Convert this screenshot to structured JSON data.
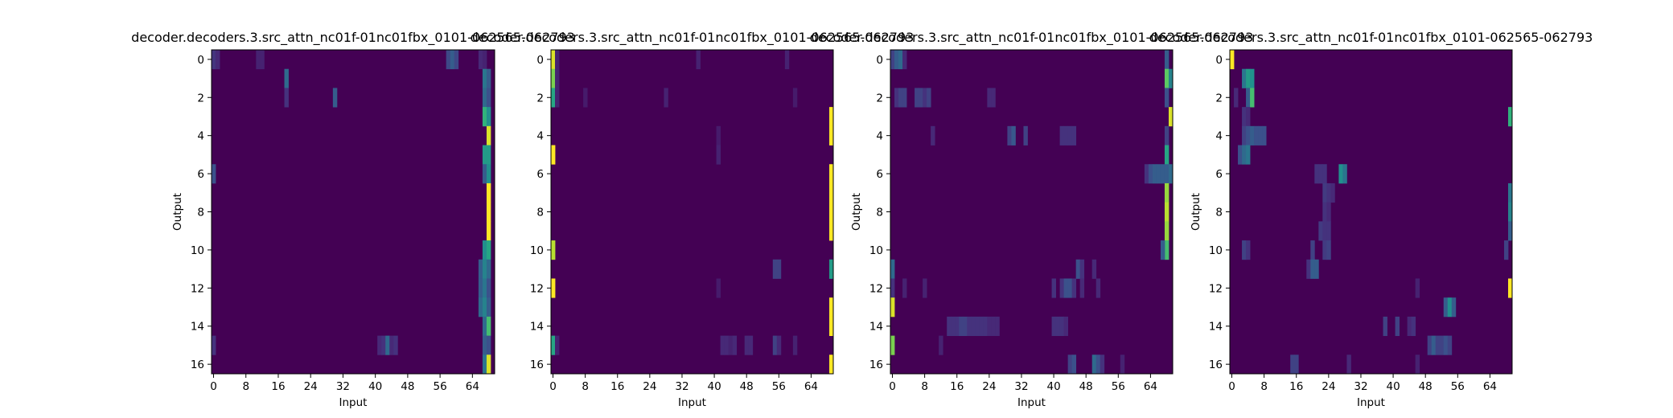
{
  "chart_data": {
    "type": "heatmap",
    "colormap": "viridis",
    "panels": [
      {
        "title": "decoder.decoders.3.src_attn_nc01f-01nc01fbx_0101-062565-062793",
        "xlabel": "Input",
        "ylabel": "Output",
        "n_rows": 17,
        "n_cols": 70,
        "xticks": [
          0,
          8,
          16,
          24,
          32,
          40,
          48,
          56,
          64
        ],
        "yticks": [
          0,
          2,
          4,
          6,
          8,
          10,
          12,
          14,
          16
        ],
        "background_value": 0.0,
        "cells": [
          [
            0,
            0,
            0.16
          ],
          [
            0,
            1,
            0.12
          ],
          [
            0,
            11,
            0.1
          ],
          [
            0,
            12,
            0.1
          ],
          [
            0,
            58,
            0.22
          ],
          [
            0,
            59,
            0.3
          ],
          [
            0,
            60,
            0.22
          ],
          [
            0,
            66,
            0.12
          ],
          [
            0,
            67,
            0.1
          ],
          [
            1,
            18,
            0.35
          ],
          [
            1,
            67,
            0.4
          ],
          [
            1,
            68,
            0.3
          ],
          [
            2,
            18,
            0.15
          ],
          [
            2,
            30,
            0.3
          ],
          [
            2,
            67,
            0.35
          ],
          [
            2,
            68,
            0.25
          ],
          [
            3,
            67,
            0.65
          ],
          [
            3,
            68,
            0.5
          ],
          [
            4,
            68,
            0.95
          ],
          [
            5,
            67,
            0.55
          ],
          [
            5,
            68,
            0.55
          ],
          [
            6,
            0,
            0.25
          ],
          [
            6,
            67,
            0.3
          ],
          [
            6,
            68,
            0.5
          ],
          [
            7,
            68,
            1.0
          ],
          [
            8,
            68,
            1.0
          ],
          [
            9,
            68,
            1.0
          ],
          [
            10,
            67,
            0.5
          ],
          [
            10,
            68,
            0.6
          ],
          [
            11,
            66,
            0.3
          ],
          [
            11,
            67,
            0.45
          ],
          [
            11,
            68,
            0.35
          ],
          [
            12,
            66,
            0.3
          ],
          [
            12,
            67,
            0.4
          ],
          [
            12,
            68,
            0.25
          ],
          [
            13,
            66,
            0.35
          ],
          [
            13,
            67,
            0.45
          ],
          [
            13,
            68,
            0.3
          ],
          [
            14,
            67,
            0.35
          ],
          [
            14,
            68,
            0.7
          ],
          [
            15,
            0,
            0.15
          ],
          [
            15,
            41,
            0.12
          ],
          [
            15,
            42,
            0.15
          ],
          [
            15,
            43,
            0.35
          ],
          [
            15,
            44,
            0.12
          ],
          [
            15,
            45,
            0.15
          ],
          [
            15,
            67,
            0.3
          ],
          [
            15,
            68,
            0.25
          ],
          [
            16,
            67,
            0.4
          ],
          [
            16,
            68,
            0.95
          ]
        ]
      },
      {
        "title": "decoder.decoders.3.src_attn_nc01f-01nc01fbx_0101-062565-062793",
        "xlabel": "Input",
        "ylabel": "",
        "n_rows": 17,
        "n_cols": 70,
        "xticks": [
          0,
          8,
          16,
          24,
          32,
          40,
          48,
          56,
          64
        ],
        "yticks": [
          0,
          2,
          4,
          6,
          8,
          10,
          12,
          14,
          16
        ],
        "background_value": 0.0,
        "cells": [
          [
            0,
            0,
            0.95
          ],
          [
            0,
            1,
            0.1
          ],
          [
            0,
            36,
            0.1
          ],
          [
            0,
            58,
            0.1
          ],
          [
            1,
            0,
            0.8
          ],
          [
            1,
            1,
            0.1
          ],
          [
            2,
            0,
            0.6
          ],
          [
            2,
            1,
            0.1
          ],
          [
            2,
            8,
            0.08
          ],
          [
            2,
            28,
            0.1
          ],
          [
            2,
            60,
            0.08
          ],
          [
            3,
            69,
            1.0
          ],
          [
            4,
            69,
            1.0
          ],
          [
            4,
            41,
            0.08
          ],
          [
            5,
            0,
            1.0
          ],
          [
            5,
            41,
            0.1
          ],
          [
            6,
            69,
            1.0
          ],
          [
            7,
            69,
            1.0
          ],
          [
            8,
            69,
            1.0
          ],
          [
            9,
            69,
            1.0
          ],
          [
            10,
            0,
            0.9
          ],
          [
            11,
            55,
            0.2
          ],
          [
            11,
            56,
            0.2
          ],
          [
            11,
            69,
            0.55
          ],
          [
            12,
            0,
            1.0
          ],
          [
            12,
            41,
            0.08
          ],
          [
            13,
            69,
            1.0
          ],
          [
            14,
            69,
            1.0
          ],
          [
            15,
            0,
            0.6
          ],
          [
            15,
            1,
            0.1
          ],
          [
            15,
            42,
            0.12
          ],
          [
            15,
            43,
            0.12
          ],
          [
            15,
            44,
            0.1
          ],
          [
            15,
            45,
            0.12
          ],
          [
            15,
            48,
            0.12
          ],
          [
            15,
            49,
            0.12
          ],
          [
            15,
            55,
            0.2
          ],
          [
            15,
            56,
            0.12
          ],
          [
            15,
            60,
            0.1
          ],
          [
            16,
            69,
            1.0
          ]
        ]
      },
      {
        "title": "decoder.decoders.3.src_attn_nc01f-01nc01fbx_0101-062565-062793",
        "xlabel": "Input",
        "ylabel": "Output",
        "n_rows": 17,
        "n_cols": 70,
        "xticks": [
          0,
          8,
          16,
          24,
          32,
          40,
          48,
          56,
          64
        ],
        "yticks": [
          0,
          2,
          4,
          6,
          8,
          10,
          12,
          14,
          16
        ],
        "background_value": 0.0,
        "cells": [
          [
            0,
            0,
            0.2
          ],
          [
            0,
            1,
            0.3
          ],
          [
            0,
            2,
            0.35
          ],
          [
            0,
            3,
            0.12
          ],
          [
            0,
            68,
            0.3
          ],
          [
            1,
            68,
            0.75
          ],
          [
            1,
            69,
            0.45
          ],
          [
            2,
            1,
            0.15
          ],
          [
            2,
            2,
            0.2
          ],
          [
            2,
            3,
            0.2
          ],
          [
            2,
            6,
            0.2
          ],
          [
            2,
            7,
            0.2
          ],
          [
            2,
            8,
            0.15
          ],
          [
            2,
            9,
            0.2
          ],
          [
            2,
            24,
            0.12
          ],
          [
            2,
            25,
            0.12
          ],
          [
            2,
            68,
            0.25
          ],
          [
            3,
            69,
            0.95
          ],
          [
            4,
            10,
            0.12
          ],
          [
            4,
            29,
            0.2
          ],
          [
            4,
            30,
            0.28
          ],
          [
            4,
            33,
            0.2
          ],
          [
            4,
            42,
            0.15
          ],
          [
            4,
            43,
            0.15
          ],
          [
            4,
            44,
            0.15
          ],
          [
            4,
            45,
            0.15
          ],
          [
            4,
            68,
            0.2
          ],
          [
            5,
            68,
            0.6
          ],
          [
            6,
            63,
            0.15
          ],
          [
            6,
            64,
            0.25
          ],
          [
            6,
            65,
            0.3
          ],
          [
            6,
            66,
            0.3
          ],
          [
            6,
            67,
            0.3
          ],
          [
            6,
            68,
            0.3
          ],
          [
            6,
            69,
            0.35
          ],
          [
            7,
            68,
            0.85
          ],
          [
            8,
            68,
            0.9
          ],
          [
            9,
            68,
            0.85
          ],
          [
            10,
            68,
            0.7
          ],
          [
            10,
            67,
            0.3
          ],
          [
            11,
            0,
            0.35
          ],
          [
            11,
            46,
            0.25
          ],
          [
            11,
            47,
            0.15
          ],
          [
            11,
            50,
            0.12
          ],
          [
            12,
            0,
            0.15
          ],
          [
            12,
            3,
            0.1
          ],
          [
            12,
            8,
            0.1
          ],
          [
            12,
            40,
            0.15
          ],
          [
            12,
            42,
            0.15
          ],
          [
            12,
            43,
            0.25
          ],
          [
            12,
            44,
            0.25
          ],
          [
            12,
            45,
            0.15
          ],
          [
            12,
            47,
            0.12
          ],
          [
            12,
            51,
            0.12
          ],
          [
            13,
            0,
            0.95
          ],
          [
            14,
            14,
            0.15
          ],
          [
            14,
            15,
            0.15
          ],
          [
            14,
            16,
            0.15
          ],
          [
            14,
            17,
            0.2
          ],
          [
            14,
            18,
            0.2
          ],
          [
            14,
            19,
            0.15
          ],
          [
            14,
            20,
            0.15
          ],
          [
            14,
            21,
            0.15
          ],
          [
            14,
            22,
            0.15
          ],
          [
            14,
            23,
            0.15
          ],
          [
            14,
            24,
            0.12
          ],
          [
            14,
            25,
            0.12
          ],
          [
            14,
            26,
            0.12
          ],
          [
            14,
            40,
            0.15
          ],
          [
            14,
            41,
            0.15
          ],
          [
            14,
            42,
            0.15
          ],
          [
            14,
            43,
            0.12
          ],
          [
            15,
            0,
            0.8
          ],
          [
            15,
            12,
            0.1
          ],
          [
            16,
            44,
            0.2
          ],
          [
            16,
            45,
            0.25
          ],
          [
            16,
            50,
            0.35
          ],
          [
            16,
            51,
            0.25
          ],
          [
            16,
            52,
            0.15
          ],
          [
            16,
            57,
            0.1
          ]
        ]
      },
      {
        "title": "decoder.decoders.3.src_attn_nc01f-01nc01fbx_0101-062565-062793",
        "xlabel": "Input",
        "ylabel": "Output",
        "n_rows": 17,
        "n_cols": 70,
        "xticks": [
          0,
          8,
          16,
          24,
          32,
          40,
          48,
          56,
          64
        ],
        "yticks": [
          0,
          2,
          4,
          6,
          8,
          10,
          12,
          14,
          16
        ],
        "background_value": 0.0,
        "cells": [
          [
            0,
            0,
            1.0
          ],
          [
            1,
            3,
            0.4
          ],
          [
            1,
            4,
            0.55
          ],
          [
            1,
            5,
            0.5
          ],
          [
            2,
            4,
            0.3
          ],
          [
            2,
            5,
            0.7
          ],
          [
            2,
            1,
            0.12
          ],
          [
            3,
            3,
            0.15
          ],
          [
            3,
            4,
            0.12
          ],
          [
            3,
            69,
            0.65
          ],
          [
            4,
            3,
            0.2
          ],
          [
            4,
            4,
            0.25
          ],
          [
            4,
            5,
            0.3
          ],
          [
            4,
            6,
            0.25
          ],
          [
            4,
            7,
            0.25
          ],
          [
            4,
            8,
            0.25
          ],
          [
            5,
            2,
            0.25
          ],
          [
            5,
            3,
            0.35
          ],
          [
            5,
            4,
            0.4
          ],
          [
            6,
            21,
            0.15
          ],
          [
            6,
            22,
            0.15
          ],
          [
            6,
            23,
            0.15
          ],
          [
            6,
            27,
            0.5
          ],
          [
            6,
            28,
            0.4
          ],
          [
            7,
            23,
            0.18
          ],
          [
            7,
            24,
            0.15
          ],
          [
            7,
            25,
            0.12
          ],
          [
            7,
            69,
            0.4
          ],
          [
            8,
            23,
            0.15
          ],
          [
            8,
            24,
            0.12
          ],
          [
            8,
            69,
            0.45
          ],
          [
            9,
            22,
            0.18
          ],
          [
            9,
            23,
            0.15
          ],
          [
            9,
            24,
            0.15
          ],
          [
            9,
            69,
            0.3
          ],
          [
            10,
            3,
            0.2
          ],
          [
            10,
            4,
            0.15
          ],
          [
            10,
            20,
            0.2
          ],
          [
            10,
            23,
            0.18
          ],
          [
            10,
            24,
            0.2
          ],
          [
            10,
            68,
            0.2
          ],
          [
            11,
            19,
            0.15
          ],
          [
            11,
            20,
            0.3
          ],
          [
            11,
            21,
            0.3
          ],
          [
            12,
            69,
            1.0
          ],
          [
            12,
            46,
            0.1
          ],
          [
            13,
            53,
            0.3
          ],
          [
            13,
            54,
            0.5
          ],
          [
            13,
            55,
            0.3
          ],
          [
            14,
            38,
            0.2
          ],
          [
            14,
            41,
            0.2
          ],
          [
            14,
            44,
            0.12
          ],
          [
            14,
            45,
            0.15
          ],
          [
            15,
            49,
            0.2
          ],
          [
            15,
            50,
            0.3
          ],
          [
            15,
            51,
            0.2
          ],
          [
            15,
            52,
            0.2
          ],
          [
            15,
            53,
            0.25
          ],
          [
            15,
            54,
            0.2
          ],
          [
            16,
            15,
            0.2
          ],
          [
            16,
            16,
            0.2
          ],
          [
            16,
            29,
            0.12
          ],
          [
            16,
            46,
            0.1
          ]
        ]
      }
    ]
  }
}
